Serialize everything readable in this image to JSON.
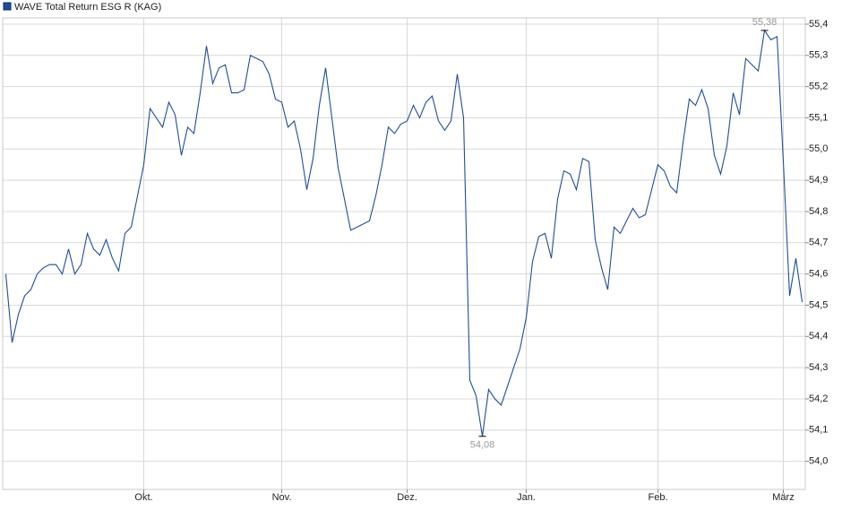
{
  "chart_data": {
    "type": "line",
    "series": [
      {
        "name": "WAVE Total Return ESG R (KAG)",
        "color": "#1f4e99",
        "values": [
          54.6,
          54.38,
          54.47,
          54.53,
          54.55,
          54.6,
          54.62,
          54.63,
          54.63,
          54.6,
          54.68,
          54.6,
          54.63,
          54.73,
          54.68,
          54.66,
          54.71,
          54.65,
          54.61,
          54.73,
          54.75,
          54.85,
          54.95,
          55.13,
          55.1,
          55.07,
          55.15,
          55.11,
          54.98,
          55.07,
          55.05,
          55.18,
          55.33,
          55.21,
          55.26,
          55.27,
          55.18,
          55.18,
          55.19,
          55.3,
          55.29,
          55.28,
          55.24,
          55.16,
          55.15,
          55.07,
          55.09,
          55.0,
          54.87,
          54.97,
          55.14,
          55.26,
          55.1,
          54.94,
          54.84,
          54.74,
          54.75,
          54.76,
          54.77,
          54.85,
          54.95,
          55.07,
          55.05,
          55.08,
          55.09,
          55.14,
          55.1,
          55.15,
          55.17,
          55.09,
          55.06,
          55.09,
          55.24,
          55.1,
          54.26,
          54.21,
          54.08,
          54.23,
          54.2,
          54.18,
          54.24,
          54.3,
          54.36,
          54.46,
          54.64,
          54.72,
          54.73,
          54.65,
          54.84,
          54.93,
          54.92,
          54.87,
          54.97,
          54.96,
          54.71,
          54.62,
          54.55,
          54.75,
          54.73,
          54.77,
          54.81,
          54.78,
          54.79,
          54.87,
          54.95,
          54.93,
          54.88,
          54.86,
          55.02,
          55.16,
          55.14,
          55.19,
          55.13,
          54.98,
          54.92,
          55.01,
          55.18,
          55.11,
          55.29,
          55.27,
          55.25,
          55.38,
          55.35,
          55.36,
          54.96,
          54.53,
          54.65,
          54.51
        ]
      }
    ],
    "xlim": [
      -0.5,
      127.5
    ],
    "xticks": [
      {
        "value": 22,
        "label": "Okt."
      },
      {
        "value": 44,
        "label": "Nov."
      },
      {
        "value": 64,
        "label": "Dez."
      },
      {
        "value": 83,
        "label": "Jan."
      },
      {
        "value": 104,
        "label": "Feb."
      },
      {
        "value": 124,
        "label": "März"
      }
    ],
    "ylim": [
      53.91,
      55.42
    ],
    "yticks": [
      {
        "value": 54.0,
        "label": "54,0"
      },
      {
        "value": 54.1,
        "label": "54,1"
      },
      {
        "value": 54.2,
        "label": "54,2"
      },
      {
        "value": 54.3,
        "label": "54,3"
      },
      {
        "value": 54.4,
        "label": "54,4"
      },
      {
        "value": 54.5,
        "label": "54,5"
      },
      {
        "value": 54.6,
        "label": "54,6"
      },
      {
        "value": 54.7,
        "label": "54,7"
      },
      {
        "value": 54.8,
        "label": "54,8"
      },
      {
        "value": 54.9,
        "label": "54,9"
      },
      {
        "value": 55.0,
        "label": "55,0"
      },
      {
        "value": 55.1,
        "label": "55,1"
      },
      {
        "value": 55.2,
        "label": "55,2"
      },
      {
        "value": 55.3,
        "label": "55,3"
      },
      {
        "value": 55.4,
        "label": "55,4"
      }
    ],
    "annotations": [
      {
        "x": 121,
        "value": 55.38,
        "label": "55,38",
        "position": "above"
      },
      {
        "x": 76,
        "value": 54.08,
        "label": "54,08",
        "position": "below"
      }
    ],
    "grid": true
  }
}
